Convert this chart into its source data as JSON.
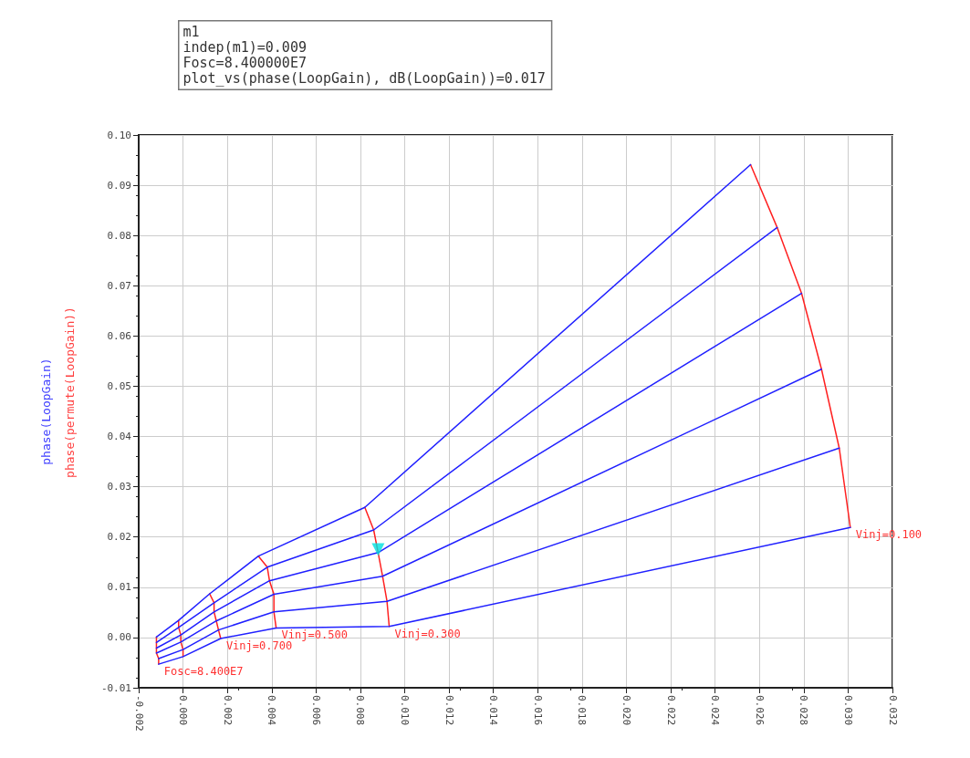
{
  "chart_data": {
    "type": "line",
    "ylabel": "phase(LoopGain)",
    "annotations": [
      "m1\nindep(m1)=0.009\nFosc=8.400000E7\nplot_vs(phase(LoopGain), dB(LoopGain))=0.017",
      "phase(permute(LoopGain))",
      {
        "text": "Vinj=0.100",
        "x": 0.0301,
        "y": 0.0219
      },
      {
        "text": "Vinj=0.300",
        "x": 0.0093,
        "y": 0.0022
      },
      {
        "text": "Vinj=0.500",
        "x": 0.0042,
        "y": 0.0019
      },
      {
        "text": "Vinj=0.700",
        "x": 0.0017,
        "y": -0.0002
      },
      {
        "text": "Fosc=8.400E7",
        "x": -0.0011,
        "y": -0.0053
      }
    ],
    "series": [
      {
        "color": "#ff2020",
        "x": [
          0.0256,
          0.0268,
          0.0279,
          0.0288,
          0.0296,
          0.0301
        ],
        "values": [
          0.0941,
          0.0816,
          0.0685,
          0.0534,
          0.0377,
          0.0219
        ]
      },
      {
        "color": "#ff2020",
        "x": [
          0.0082,
          0.0086,
          0.0088,
          0.009,
          0.0092,
          0.0093
        ],
        "values": [
          0.0259,
          0.0214,
          0.0169,
          0.0122,
          0.0072,
          0.0022
        ]
      },
      {
        "color": "#ff2020",
        "x": [
          0.0034,
          0.0038,
          0.0039,
          0.0041,
          0.0041,
          0.0042
        ],
        "values": [
          0.0162,
          0.014,
          0.0113,
          0.0086,
          0.0051,
          0.0019
        ]
      },
      {
        "color": "#ff2020",
        "x": [
          0.0012,
          0.0014,
          0.0014,
          0.0015,
          0.0016,
          0.0017
        ],
        "values": [
          0.0087,
          0.0069,
          0.0051,
          0.0033,
          0.0015,
          -0.0002
        ]
      },
      {
        "color": "#ff2020",
        "x": [
          -0.0002,
          -0.0002,
          -0.0001,
          -0.0001,
          0.0,
          0.0
        ],
        "values": [
          0.0034,
          0.002,
          0.0005,
          -0.0009,
          -0.0024,
          -0.0038
        ]
      },
      {
        "color": "#ff2020",
        "x": [
          -0.0012,
          -0.0012,
          -0.0012,
          -0.0012,
          -0.0011,
          -0.0011
        ],
        "values": [
          0.0001,
          -0.001,
          -0.0021,
          -0.0031,
          -0.0042,
          -0.0053
        ]
      },
      {
        "color": "#2020ff",
        "x": [
          -0.0012,
          -0.0002,
          0.0012,
          0.0034,
          0.0082,
          0.0256
        ],
        "values": [
          0.0001,
          0.0034,
          0.0087,
          0.0162,
          0.0259,
          0.0941
        ]
      },
      {
        "color": "#2020ff",
        "x": [
          -0.0012,
          -0.0002,
          0.0014,
          0.0038,
          0.0086,
          0.0268
        ],
        "values": [
          -0.001,
          0.002,
          0.0069,
          0.014,
          0.0214,
          0.0816
        ]
      },
      {
        "color": "#2020ff",
        "x": [
          -0.0012,
          -0.0001,
          0.0014,
          0.0039,
          0.0088,
          0.0279
        ],
        "values": [
          -0.0021,
          0.0005,
          0.0051,
          0.0113,
          0.0169,
          0.0685
        ]
      },
      {
        "color": "#2020ff",
        "x": [
          -0.0012,
          -0.0001,
          0.0015,
          0.0041,
          0.009,
          0.0288
        ],
        "values": [
          -0.0031,
          -0.0009,
          0.0033,
          0.0086,
          0.0122,
          0.0534
        ]
      },
      {
        "color": "#2020ff",
        "x": [
          -0.0011,
          0.0,
          0.0016,
          0.0041,
          0.0092,
          0.0296
        ],
        "values": [
          -0.0042,
          -0.0024,
          0.0015,
          0.0051,
          0.0072,
          0.0377
        ]
      },
      {
        "color": "#2020ff",
        "x": [
          -0.0011,
          0.0,
          0.0017,
          0.0042,
          0.0093,
          0.0301
        ],
        "values": [
          -0.0053,
          -0.0038,
          -0.0002,
          0.0019,
          0.0022,
          0.0219
        ]
      },
      {
        "type": "scatter",
        "marker": "triangle",
        "color": "#00e0e0",
        "x": [
          0.0088
        ],
        "values": [
          0.0175
        ]
      }
    ],
    "xlim": [
      -0.002,
      0.032
    ],
    "xticks": [
      {
        "value": -0.002,
        "label": "-0.002"
      },
      {
        "value": 0,
        "label": "0.000"
      },
      {
        "value": 0.002,
        "label": "0.002"
      },
      {
        "value": 0.004,
        "label": "0.004"
      },
      {
        "value": 0.006,
        "label": "0.006"
      },
      {
        "value": 0.008,
        "label": "0.008"
      },
      {
        "value": 0.01,
        "label": "0.010"
      },
      {
        "value": 0.012,
        "label": "0.012"
      },
      {
        "value": 0.014,
        "label": "0.014"
      },
      {
        "value": 0.016,
        "label": "0.016"
      },
      {
        "value": 0.018,
        "label": "0.018"
      },
      {
        "value": 0.02,
        "label": "0.020"
      },
      {
        "value": 0.022,
        "label": "0.022"
      },
      {
        "value": 0.024,
        "label": "0.024"
      },
      {
        "value": 0.026,
        "label": "0.026"
      },
      {
        "value": 0.028,
        "label": "0.028"
      },
      {
        "value": 0.03,
        "label": "0.030"
      },
      {
        "value": 0.032,
        "label": "0.032"
      }
    ],
    "ylim": [
      -0.01,
      0.1
    ],
    "yticks": [
      {
        "value": -0.01,
        "label": "-0.01"
      },
      {
        "value": 0,
        "label": "0.00"
      },
      {
        "value": 0.01,
        "label": "0.01"
      },
      {
        "value": 0.02,
        "label": "0.02"
      },
      {
        "value": 0.03,
        "label": "0.03"
      },
      {
        "value": 0.04,
        "label": "0.04"
      },
      {
        "value": 0.05,
        "label": "0.05"
      },
      {
        "value": 0.06,
        "label": "0.06"
      },
      {
        "value": 0.07,
        "label": "0.07"
      },
      {
        "value": 0.08,
        "label": "0.08"
      },
      {
        "value": 0.09,
        "label": "0.09"
      },
      {
        "value": 0.1,
        "label": "0.10"
      }
    ],
    "grid": true
  }
}
